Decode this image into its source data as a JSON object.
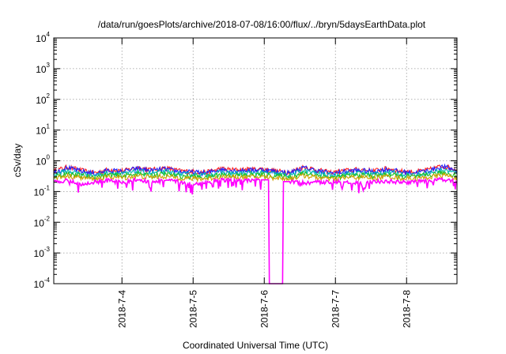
{
  "chart_data": {
    "type": "line",
    "title": "/data/run/goesPlots/archive/2018-07-08/16:00/flux/../bryn/5daysEarthData.plot",
    "xlabel": "Coordinated Universal Time (UTC)",
    "ylabel": "cSv/day",
    "x_scale": "time",
    "y_scale": "log",
    "xlim": [
      "2018-07-03T01:00",
      "2018-07-08T17:00"
    ],
    "ylim": [
      0.0001,
      10000
    ],
    "grid": true,
    "legend": "none",
    "x_ticks": [
      "2018-7-4",
      "2018-7-5",
      "2018-7-6",
      "2018-7-7",
      "2018-7-8"
    ],
    "y_ticks": [
      {
        "value": 0.0001,
        "base": "10",
        "exp": "-4"
      },
      {
        "value": 0.001,
        "base": "10",
        "exp": "-3"
      },
      {
        "value": 0.01,
        "base": "10",
        "exp": "-2"
      },
      {
        "value": 0.1,
        "base": "10",
        "exp": "-1"
      },
      {
        "value": 1,
        "base": "10",
        "exp": "0"
      },
      {
        "value": 10,
        "base": "10",
        "exp": "1"
      },
      {
        "value": 100,
        "base": "10",
        "exp": "2"
      },
      {
        "value": 1000,
        "base": "10",
        "exp": "3"
      },
      {
        "value": 10000,
        "base": "10",
        "exp": "4"
      }
    ],
    "series": [
      {
        "color": "#ff2020",
        "values": [
          0.45,
          0.62,
          0.48,
          0.4,
          0.52,
          0.46,
          0.6,
          0.5,
          0.58,
          0.47,
          0.44,
          0.42,
          0.55,
          0.5,
          0.52,
          0.54,
          0.46,
          0.42,
          0.63,
          0.49,
          0.41,
          0.48,
          0.52,
          0.47,
          0.56,
          0.45,
          0.43,
          0.51,
          0.68,
          0.5
        ]
      },
      {
        "color": "#2020ff",
        "values": [
          0.42,
          0.58,
          0.45,
          0.38,
          0.49,
          0.44,
          0.56,
          0.47,
          0.54,
          0.44,
          0.42,
          0.4,
          0.52,
          0.47,
          0.49,
          0.51,
          0.44,
          0.4,
          0.59,
          0.46,
          0.39,
          0.45,
          0.49,
          0.44,
          0.53,
          0.43,
          0.41,
          0.48,
          0.64,
          0.47
        ]
      },
      {
        "color": "#00b8b8",
        "values": [
          0.36,
          0.46,
          0.38,
          0.33,
          0.41,
          0.37,
          0.45,
          0.39,
          0.44,
          0.37,
          0.35,
          0.34,
          0.42,
          0.39,
          0.4,
          0.41,
          0.37,
          0.34,
          0.47,
          0.38,
          0.33,
          0.38,
          0.4,
          0.37,
          0.43,
          0.36,
          0.35,
          0.4,
          0.5,
          0.39
        ]
      },
      {
        "color": "#20c020",
        "values": [
          0.31,
          0.38,
          0.32,
          0.29,
          0.35,
          0.32,
          0.38,
          0.33,
          0.37,
          0.32,
          0.3,
          0.29,
          0.36,
          0.33,
          0.34,
          0.35,
          0.32,
          0.29,
          0.39,
          0.33,
          0.28,
          0.32,
          0.34,
          0.32,
          0.36,
          0.31,
          0.3,
          0.34,
          0.41,
          0.33
        ]
      },
      {
        "color": "#d0a000",
        "values": [
          0.27,
          0.32,
          0.28,
          0.25,
          0.3,
          0.28,
          0.32,
          0.29,
          0.31,
          0.28,
          0.26,
          0.26,
          0.3,
          0.29,
          0.29,
          0.3,
          0.28,
          0.26,
          0.33,
          0.28,
          0.25,
          0.28,
          0.29,
          0.27,
          0.31,
          0.27,
          0.26,
          0.29,
          0.34,
          0.28
        ]
      },
      {
        "color": "#ff00ff",
        "values": [
          0.2,
          0.24,
          0.16,
          0.21,
          0.23,
          0.19,
          0.25,
          0.2,
          0.23,
          0.21,
          0.17,
          0.2,
          0.24,
          0.22,
          0.23,
          0.24,
          0.0001,
          0.21,
          0.19,
          0.2,
          0.21,
          0.22,
          0.18,
          0.21,
          0.22,
          0.2,
          0.21,
          0.22,
          0.25,
          0.21
        ]
      }
    ]
  }
}
